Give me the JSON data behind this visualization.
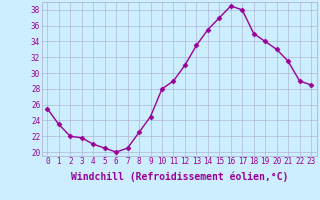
{
  "x": [
    0,
    1,
    2,
    3,
    4,
    5,
    6,
    7,
    8,
    9,
    10,
    11,
    12,
    13,
    14,
    15,
    16,
    17,
    18,
    19,
    20,
    21,
    22,
    23
  ],
  "y": [
    25.5,
    23.5,
    22,
    21.8,
    21,
    20.5,
    20,
    20.5,
    22.5,
    24.5,
    28,
    29,
    31,
    33.5,
    35.5,
    37,
    38.5,
    38,
    35,
    34,
    33,
    31.5,
    29,
    28.5
  ],
  "line_color": "#990099",
  "marker": "D",
  "marker_size": 2.5,
  "background_color": "#cceeff",
  "grid_color": "#aaaacc",
  "xlabel": "Windchill (Refroidissement éolien,°C)",
  "ylabel": "",
  "xlim": [
    -0.5,
    23.5
  ],
  "ylim": [
    19.5,
    39
  ],
  "yticks": [
    20,
    22,
    24,
    26,
    28,
    30,
    32,
    34,
    36,
    38
  ],
  "xticks": [
    0,
    1,
    2,
    3,
    4,
    5,
    6,
    7,
    8,
    9,
    10,
    11,
    12,
    13,
    14,
    15,
    16,
    17,
    18,
    19,
    20,
    21,
    22,
    23
  ],
  "tick_label_size": 5.5,
  "xlabel_size": 7,
  "line_width": 1.0
}
